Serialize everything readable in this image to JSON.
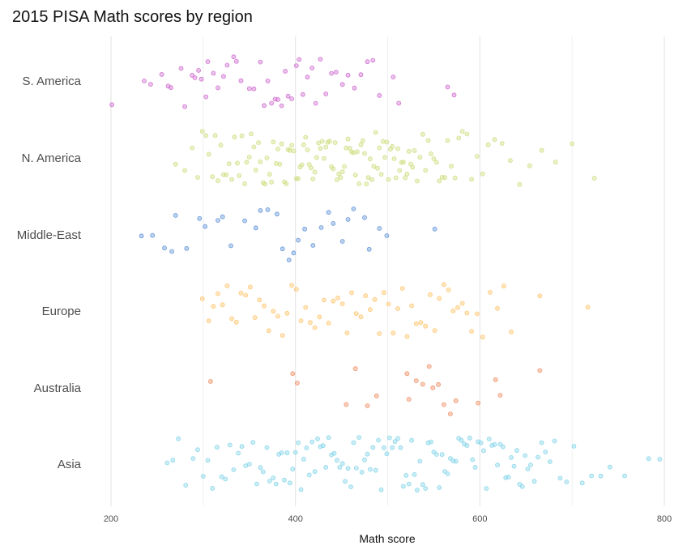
{
  "chart_data": {
    "type": "scatter",
    "title": "2015 PISA Math scores by region",
    "xlabel": "Math score",
    "ylabel": "",
    "xlim": [
      190,
      800
    ],
    "x_ticks": [
      200,
      400,
      600,
      800
    ],
    "grid": "vertical",
    "legend": "none",
    "categories": [
      "S. America",
      "N. America",
      "Middle-East",
      "Europe",
      "Australia",
      "Asia"
    ],
    "series": [
      {
        "category": "S. America",
        "color": "#cc66cc",
        "values": [
          201,
          236,
          243,
          255,
          262,
          265,
          276,
          280,
          288,
          291,
          295,
          298,
          303,
          305,
          311,
          316,
          322,
          326,
          333,
          336,
          341,
          350,
          355,
          362,
          366,
          370,
          374,
          378,
          381,
          385,
          389,
          392,
          396,
          401,
          404,
          408,
          413,
          418,
          422,
          427,
          433,
          439,
          444,
          451,
          457,
          464,
          471,
          478,
          484,
          491,
          506,
          512,
          565,
          572
        ]
      },
      {
        "category": "N. America",
        "color": "#cddc7a",
        "values": [
          270,
          280,
          288,
          294,
          299,
          303,
          306,
          310,
          313,
          316,
          319,
          322,
          325,
          328,
          331,
          334,
          337,
          339,
          342,
          345,
          347,
          350,
          352,
          355,
          357,
          360,
          362,
          365,
          367,
          369,
          372,
          374,
          376,
          379,
          381,
          383,
          385,
          388,
          390,
          392,
          394,
          396,
          398,
          401,
          403,
          405,
          407,
          409,
          411,
          413,
          415,
          417,
          419,
          421,
          423,
          425,
          427,
          429,
          431,
          433,
          435,
          437,
          439,
          441,
          443,
          445,
          447,
          449,
          451,
          453,
          455,
          457,
          459,
          461,
          463,
          465,
          467,
          469,
          471,
          473,
          475,
          477,
          479,
          481,
          483,
          485,
          487,
          489,
          491,
          493,
          495,
          497,
          499,
          501,
          503,
          505,
          507,
          509,
          511,
          513,
          515,
          517,
          519,
          521,
          523,
          525,
          527,
          529,
          532,
          535,
          538,
          541,
          544,
          547,
          550,
          553,
          556,
          559,
          562,
          565,
          569,
          573,
          577,
          581,
          586,
          591,
          597,
          603,
          609,
          616,
          624,
          633,
          643,
          654,
          667,
          682,
          700,
          724
        ]
      },
      {
        "category": "Middle-East",
        "color": "#5b8fd6",
        "values": [
          233,
          245,
          258,
          266,
          270,
          282,
          296,
          302,
          316,
          321,
          330,
          345,
          357,
          362,
          370,
          380,
          386,
          393,
          398,
          403,
          410,
          419,
          428,
          436,
          441,
          451,
          457,
          463,
          475,
          480,
          491,
          499,
          551
        ]
      },
      {
        "category": "Europe",
        "color": "#ffc266",
        "values": [
          299,
          306,
          311,
          316,
          321,
          326,
          331,
          336,
          341,
          346,
          351,
          356,
          361,
          366,
          371,
          376,
          381,
          386,
          391,
          396,
          401,
          406,
          411,
          416,
          421,
          426,
          431,
          436,
          441,
          446,
          451,
          456,
          461,
          466,
          471,
          476,
          481,
          486,
          491,
          496,
          501,
          506,
          511,
          516,
          521,
          526,
          531,
          536,
          541,
          546,
          551,
          556,
          561,
          566,
          571,
          576,
          581,
          586,
          591,
          597,
          603,
          611,
          619,
          626,
          634,
          665,
          717
        ]
      },
      {
        "category": "Australia",
        "color": "#f08a5d",
        "values": [
          308,
          397,
          402,
          455,
          465,
          478,
          488,
          521,
          523,
          531,
          538,
          545,
          549,
          555,
          561,
          568,
          574,
          598,
          617,
          622,
          665
        ]
      },
      {
        "category": "Asia",
        "color": "#7fd3e8",
        "values": [
          261,
          267,
          273,
          281,
          289,
          294,
          300,
          305,
          310,
          315,
          320,
          324,
          329,
          333,
          338,
          342,
          346,
          350,
          354,
          358,
          362,
          365,
          369,
          372,
          376,
          379,
          382,
          385,
          388,
          391,
          394,
          397,
          400,
          403,
          406,
          409,
          412,
          415,
          418,
          421,
          424,
          427,
          430,
          433,
          436,
          439,
          442,
          445,
          448,
          451,
          454,
          457,
          460,
          463,
          466,
          469,
          472,
          475,
          478,
          481,
          484,
          487,
          490,
          493,
          496,
          499,
          502,
          505,
          508,
          511,
          514,
          517,
          520,
          523,
          526,
          529,
          532,
          535,
          538,
          541,
          544,
          547,
          550,
          553,
          556,
          559,
          562,
          565,
          568,
          571,
          574,
          577,
          580,
          583,
          586,
          589,
          592,
          595,
          598,
          601,
          604,
          607,
          610,
          613,
          616,
          619,
          622,
          625,
          628,
          631,
          634,
          637,
          640,
          643,
          646,
          649,
          652,
          655,
          659,
          663,
          667,
          671,
          676,
          681,
          687,
          694,
          702,
          711,
          721,
          731,
          741,
          757,
          783,
          795
        ]
      }
    ]
  }
}
